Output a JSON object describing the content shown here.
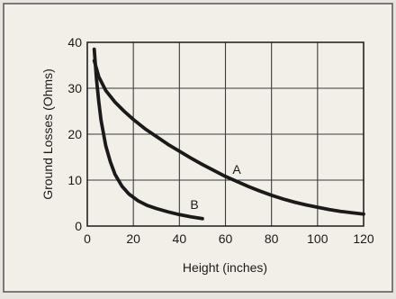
{
  "chart_data": {
    "type": "line",
    "title": "",
    "xlabel": "Height (inches)",
    "ylabel": "Ground Losses (Ohms)",
    "xlim": [
      0,
      120
    ],
    "ylim": [
      0,
      40
    ],
    "xticks": [
      0,
      20,
      40,
      60,
      80,
      100,
      120
    ],
    "yticks": [
      0,
      10,
      20,
      30,
      40
    ],
    "grid": true,
    "legend": "none",
    "series": [
      {
        "name": "A",
        "color": "#1a1a1a",
        "x": [
          3,
          5,
          8,
          12,
          16,
          20,
          25,
          30,
          35,
          40,
          45,
          50,
          55,
          60,
          65,
          70,
          75,
          80,
          85,
          90,
          95,
          100,
          105,
          110,
          115,
          120
        ],
        "y": [
          36,
          32.5,
          29.5,
          27,
          25,
          23.2,
          21.2,
          19.5,
          17.8,
          16.3,
          14.8,
          13.4,
          12.1,
          10.8,
          9.7,
          8.6,
          7.6,
          6.7,
          5.9,
          5.2,
          4.6,
          4.1,
          3.6,
          3.2,
          2.9,
          2.6
        ]
      },
      {
        "name": "B",
        "color": "#1a1a1a",
        "x": [
          3,
          4,
          5,
          6,
          8,
          10,
          12,
          15,
          18,
          22,
          26,
          30,
          35,
          40,
          45,
          50
        ],
        "y": [
          38.5,
          32,
          27,
          23,
          17.5,
          14,
          11.3,
          8.7,
          7,
          5.5,
          4.5,
          3.8,
          3.1,
          2.5,
          2,
          1.6
        ]
      }
    ]
  }
}
